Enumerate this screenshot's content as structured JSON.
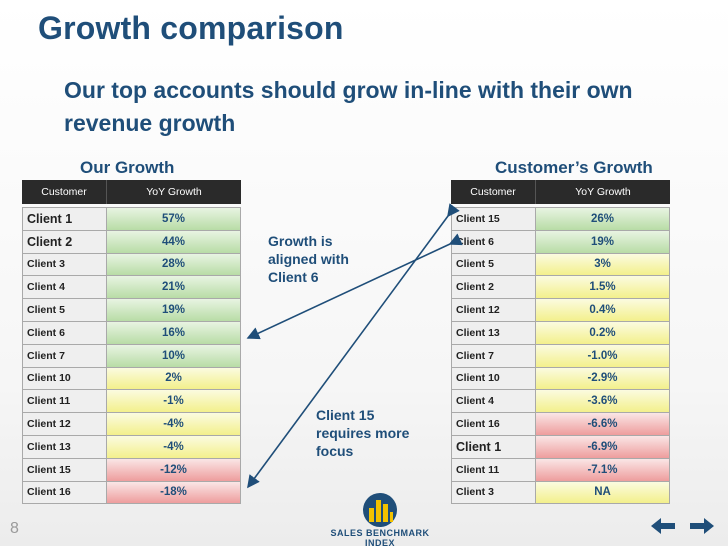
{
  "title": "Growth comparison",
  "subtitle": "Our top accounts should grow in-line with their own revenue growth",
  "colors": {
    "accent": "#1f4e79",
    "green": "#b8dca6",
    "yellow": "#f3f08c",
    "red": "#ee9d9d",
    "header": "#2a2a2a"
  },
  "left": {
    "title": "Our Growth",
    "header": {
      "col1": "Customer",
      "col2": "YoY Growth"
    },
    "rows": [
      {
        "name": "Client 1",
        "value": "57%",
        "status": "g",
        "big": true
      },
      {
        "name": "Client 2",
        "value": "44%",
        "status": "g",
        "big": true
      },
      {
        "name": "Client 3",
        "value": "28%",
        "status": "g"
      },
      {
        "name": "Client 4",
        "value": "21%",
        "status": "g"
      },
      {
        "name": "Client 5",
        "value": "19%",
        "status": "g"
      },
      {
        "name": "Client 6",
        "value": "16%",
        "status": "g"
      },
      {
        "name": "Client 7",
        "value": "10%",
        "status": "g"
      },
      {
        "name": "Client 10",
        "value": "2%",
        "status": "y"
      },
      {
        "name": "Client 11",
        "value": "-1%",
        "status": "y"
      },
      {
        "name": "Client 12",
        "value": "-4%",
        "status": "y"
      },
      {
        "name": "Client 13",
        "value": "-4%",
        "status": "y"
      },
      {
        "name": "Client 15",
        "value": "-12%",
        "status": "r"
      },
      {
        "name": "Client 16",
        "value": "-18%",
        "status": "r"
      }
    ]
  },
  "right": {
    "title": "Customer’s Growth",
    "header": {
      "col1": "Customer",
      "col2": "YoY Growth"
    },
    "rows": [
      {
        "name": "Client 15",
        "value": "26%",
        "status": "g"
      },
      {
        "name": "Client 6",
        "value": "19%",
        "status": "g"
      },
      {
        "name": "Client 5",
        "value": "3%",
        "status": "y"
      },
      {
        "name": "Client 2",
        "value": "1.5%",
        "status": "y"
      },
      {
        "name": "Client 12",
        "value": "0.4%",
        "status": "y"
      },
      {
        "name": "Client 13",
        "value": "0.2%",
        "status": "y"
      },
      {
        "name": "Client 7",
        "value": "-1.0%",
        "status": "y"
      },
      {
        "name": "Client 10",
        "value": "-2.9%",
        "status": "y"
      },
      {
        "name": "Client 4",
        "value": "-3.6%",
        "status": "y"
      },
      {
        "name": "Client 16",
        "value": "-6.6%",
        "status": "r"
      },
      {
        "name": "Client 1",
        "value": "-6.9%",
        "status": "r",
        "big": true
      },
      {
        "name": "Client 11",
        "value": "-7.1%",
        "status": "r"
      },
      {
        "name": "Client 3",
        "value": "NA",
        "status": "y"
      }
    ]
  },
  "notes": {
    "aligned": "Growth is aligned with Client 6",
    "focus": "Client 15 requires more focus"
  },
  "page_number": "8",
  "logo": {
    "text": "SALES BENCHMARK INDEX"
  },
  "nav": {
    "prev_icon": "back-arrow-icon",
    "next_icon": "forward-arrow-icon"
  }
}
